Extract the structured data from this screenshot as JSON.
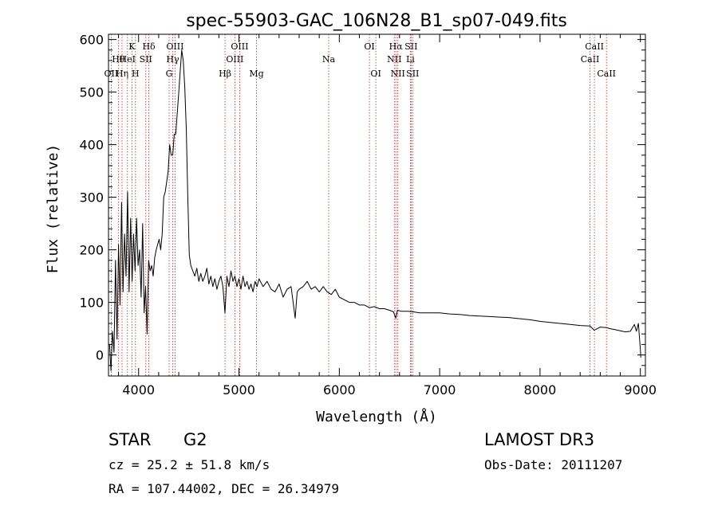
{
  "chart_data": {
    "type": "line",
    "title": "spec-55903-GAC_106N28_B1_sp07-049.fits",
    "xlabel": "Wavelength (Å)",
    "ylabel": "Flux (relative)",
    "xlim": [
      3700,
      9050
    ],
    "ylim": [
      -40,
      610
    ],
    "x_ticks": [
      4000,
      5000,
      6000,
      7000,
      8000,
      9000
    ],
    "x_tick_labels": [
      "4000",
      "5000",
      "6000",
      "7000",
      "8000",
      "9000"
    ],
    "y_ticks": [
      0,
      100,
      200,
      300,
      400,
      500,
      600
    ],
    "y_tick_labels": [
      "0",
      "100",
      "200",
      "300",
      "400",
      "500",
      "600"
    ],
    "grid": false,
    "line_color": "#000000",
    "marker_color": "#cc2222",
    "series": [
      {
        "name": "flux",
        "x": [
          3710,
          3725,
          3740,
          3755,
          3770,
          3785,
          3800,
          3815,
          3830,
          3845,
          3860,
          3875,
          3890,
          3905,
          3920,
          3935,
          3950,
          3965,
          3980,
          3995,
          4010,
          4025,
          4040,
          4055,
          4070,
          4085,
          4100,
          4115,
          4130,
          4145,
          4160,
          4175,
          4190,
          4205,
          4220,
          4235,
          4250,
          4265,
          4280,
          4295,
          4310,
          4325,
          4340,
          4355,
          4370,
          4385,
          4400,
          4415,
          4430,
          4445,
          4460,
          4475,
          4490,
          4505,
          4520,
          4540,
          4560,
          4580,
          4600,
          4620,
          4640,
          4660,
          4680,
          4700,
          4720,
          4740,
          4760,
          4780,
          4800,
          4820,
          4840,
          4861,
          4880,
          4900,
          4920,
          4940,
          4960,
          4980,
          5000,
          5020,
          5040,
          5060,
          5080,
          5100,
          5120,
          5140,
          5160,
          5180,
          5200,
          5240,
          5280,
          5320,
          5360,
          5400,
          5440,
          5480,
          5520,
          5560,
          5580,
          5600,
          5640,
          5680,
          5720,
          5760,
          5800,
          5840,
          5880,
          5920,
          5960,
          6000,
          6050,
          6100,
          6150,
          6200,
          6250,
          6300,
          6350,
          6400,
          6450,
          6500,
          6540,
          6563,
          6580,
          6620,
          6680,
          6740,
          6800,
          6900,
          7000,
          7100,
          7200,
          7300,
          7400,
          7500,
          7600,
          7700,
          7800,
          7900,
          8000,
          8100,
          8200,
          8300,
          8400,
          8500,
          8540,
          8600,
          8662,
          8700,
          8750,
          8800,
          8850,
          8900,
          8940,
          8960,
          8980,
          8990,
          9000,
          9005
        ],
        "y": [
          20,
          -30,
          45,
          5,
          180,
          30,
          210,
          95,
          290,
          120,
          230,
          150,
          310,
          120,
          260,
          140,
          230,
          160,
          260,
          170,
          200,
          110,
          250,
          80,
          130,
          40,
          180,
          160,
          170,
          150,
          185,
          200,
          210,
          220,
          200,
          230,
          300,
          310,
          330,
          350,
          400,
          380,
          380,
          420,
          420,
          460,
          500,
          540,
          580,
          560,
          510,
          430,
          300,
          190,
          170,
          160,
          150,
          165,
          140,
          155,
          140,
          150,
          165,
          135,
          150,
          130,
          145,
          125,
          140,
          150,
          130,
          80,
          150,
          130,
          160,
          140,
          150,
          130,
          145,
          125,
          150,
          130,
          140,
          125,
          135,
          120,
          140,
          130,
          145,
          130,
          140,
          125,
          120,
          135,
          110,
          125,
          130,
          70,
          120,
          125,
          130,
          140,
          125,
          130,
          120,
          130,
          120,
          115,
          125,
          110,
          105,
          100,
          100,
          95,
          95,
          90,
          92,
          88,
          88,
          85,
          82,
          70,
          85,
          83,
          83,
          82,
          80,
          80,
          80,
          78,
          77,
          75,
          74,
          73,
          72,
          71,
          69,
          67,
          64,
          62,
          60,
          58,
          56,
          55,
          47,
          53,
          52,
          50,
          48,
          46,
          44,
          45,
          58,
          45,
          60,
          35,
          10,
          -5
        ],
        "color": "#000000"
      }
    ],
    "line_markers": [
      {
        "wavelength": 3727,
        "label": "OII",
        "row": 3
      },
      {
        "wavelength": 3798,
        "label": "Hθ",
        "row": 2
      },
      {
        "wavelength": 3835,
        "label": "Hη",
        "row": 3
      },
      {
        "wavelength": 3889,
        "label": "HeI",
        "row": 2
      },
      {
        "wavelength": 3933,
        "label": "K",
        "row": 1
      },
      {
        "wavelength": 3969,
        "label": "H",
        "row": 3
      },
      {
        "wavelength": 4072,
        "label": "SII",
        "row": 2
      },
      {
        "wavelength": 4102,
        "label": "Hδ",
        "row": 1
      },
      {
        "wavelength": 4304,
        "label": "G",
        "row": 3
      },
      {
        "wavelength": 4340,
        "label": "Hγ",
        "row": 2
      },
      {
        "wavelength": 4363,
        "label": "OIII",
        "row": 1
      },
      {
        "wavelength": 4861,
        "label": "Hβ",
        "row": 3
      },
      {
        "wavelength": 4959,
        "label": "OIII",
        "row": 2
      },
      {
        "wavelength": 5007,
        "label": "OIII",
        "row": 1
      },
      {
        "wavelength": 5175,
        "label": "Mg",
        "row": 3
      },
      {
        "wavelength": 5894,
        "label": "Na",
        "row": 2
      },
      {
        "wavelength": 6300,
        "label": "OI",
        "row": 1
      },
      {
        "wavelength": 6364,
        "label": "OI",
        "row": 3
      },
      {
        "wavelength": 6548,
        "label": "NII",
        "row": 2
      },
      {
        "wavelength": 6563,
        "label": "Hα",
        "row": 1
      },
      {
        "wavelength": 6583,
        "label": "NII",
        "row": 3
      },
      {
        "wavelength": 6708,
        "label": "Li",
        "row": 2
      },
      {
        "wavelength": 6716,
        "label": "SII",
        "row": 1
      },
      {
        "wavelength": 6731,
        "label": "SII",
        "row": 3
      },
      {
        "wavelength": 8498,
        "label": "CaII",
        "row": 2
      },
      {
        "wavelength": 8542,
        "label": "CaII",
        "row": 1
      },
      {
        "wavelength": 8662,
        "label": "CaII",
        "row": 3
      }
    ]
  },
  "info": {
    "class_label": "STAR",
    "subclass": "G2",
    "survey": "LAMOST DR3",
    "redshift": "cz = 25.2 ± 51.8 km/s",
    "obs_date": "Obs-Date: 20111207",
    "coords": "RA = 107.44002, DEC =  26.34979"
  }
}
